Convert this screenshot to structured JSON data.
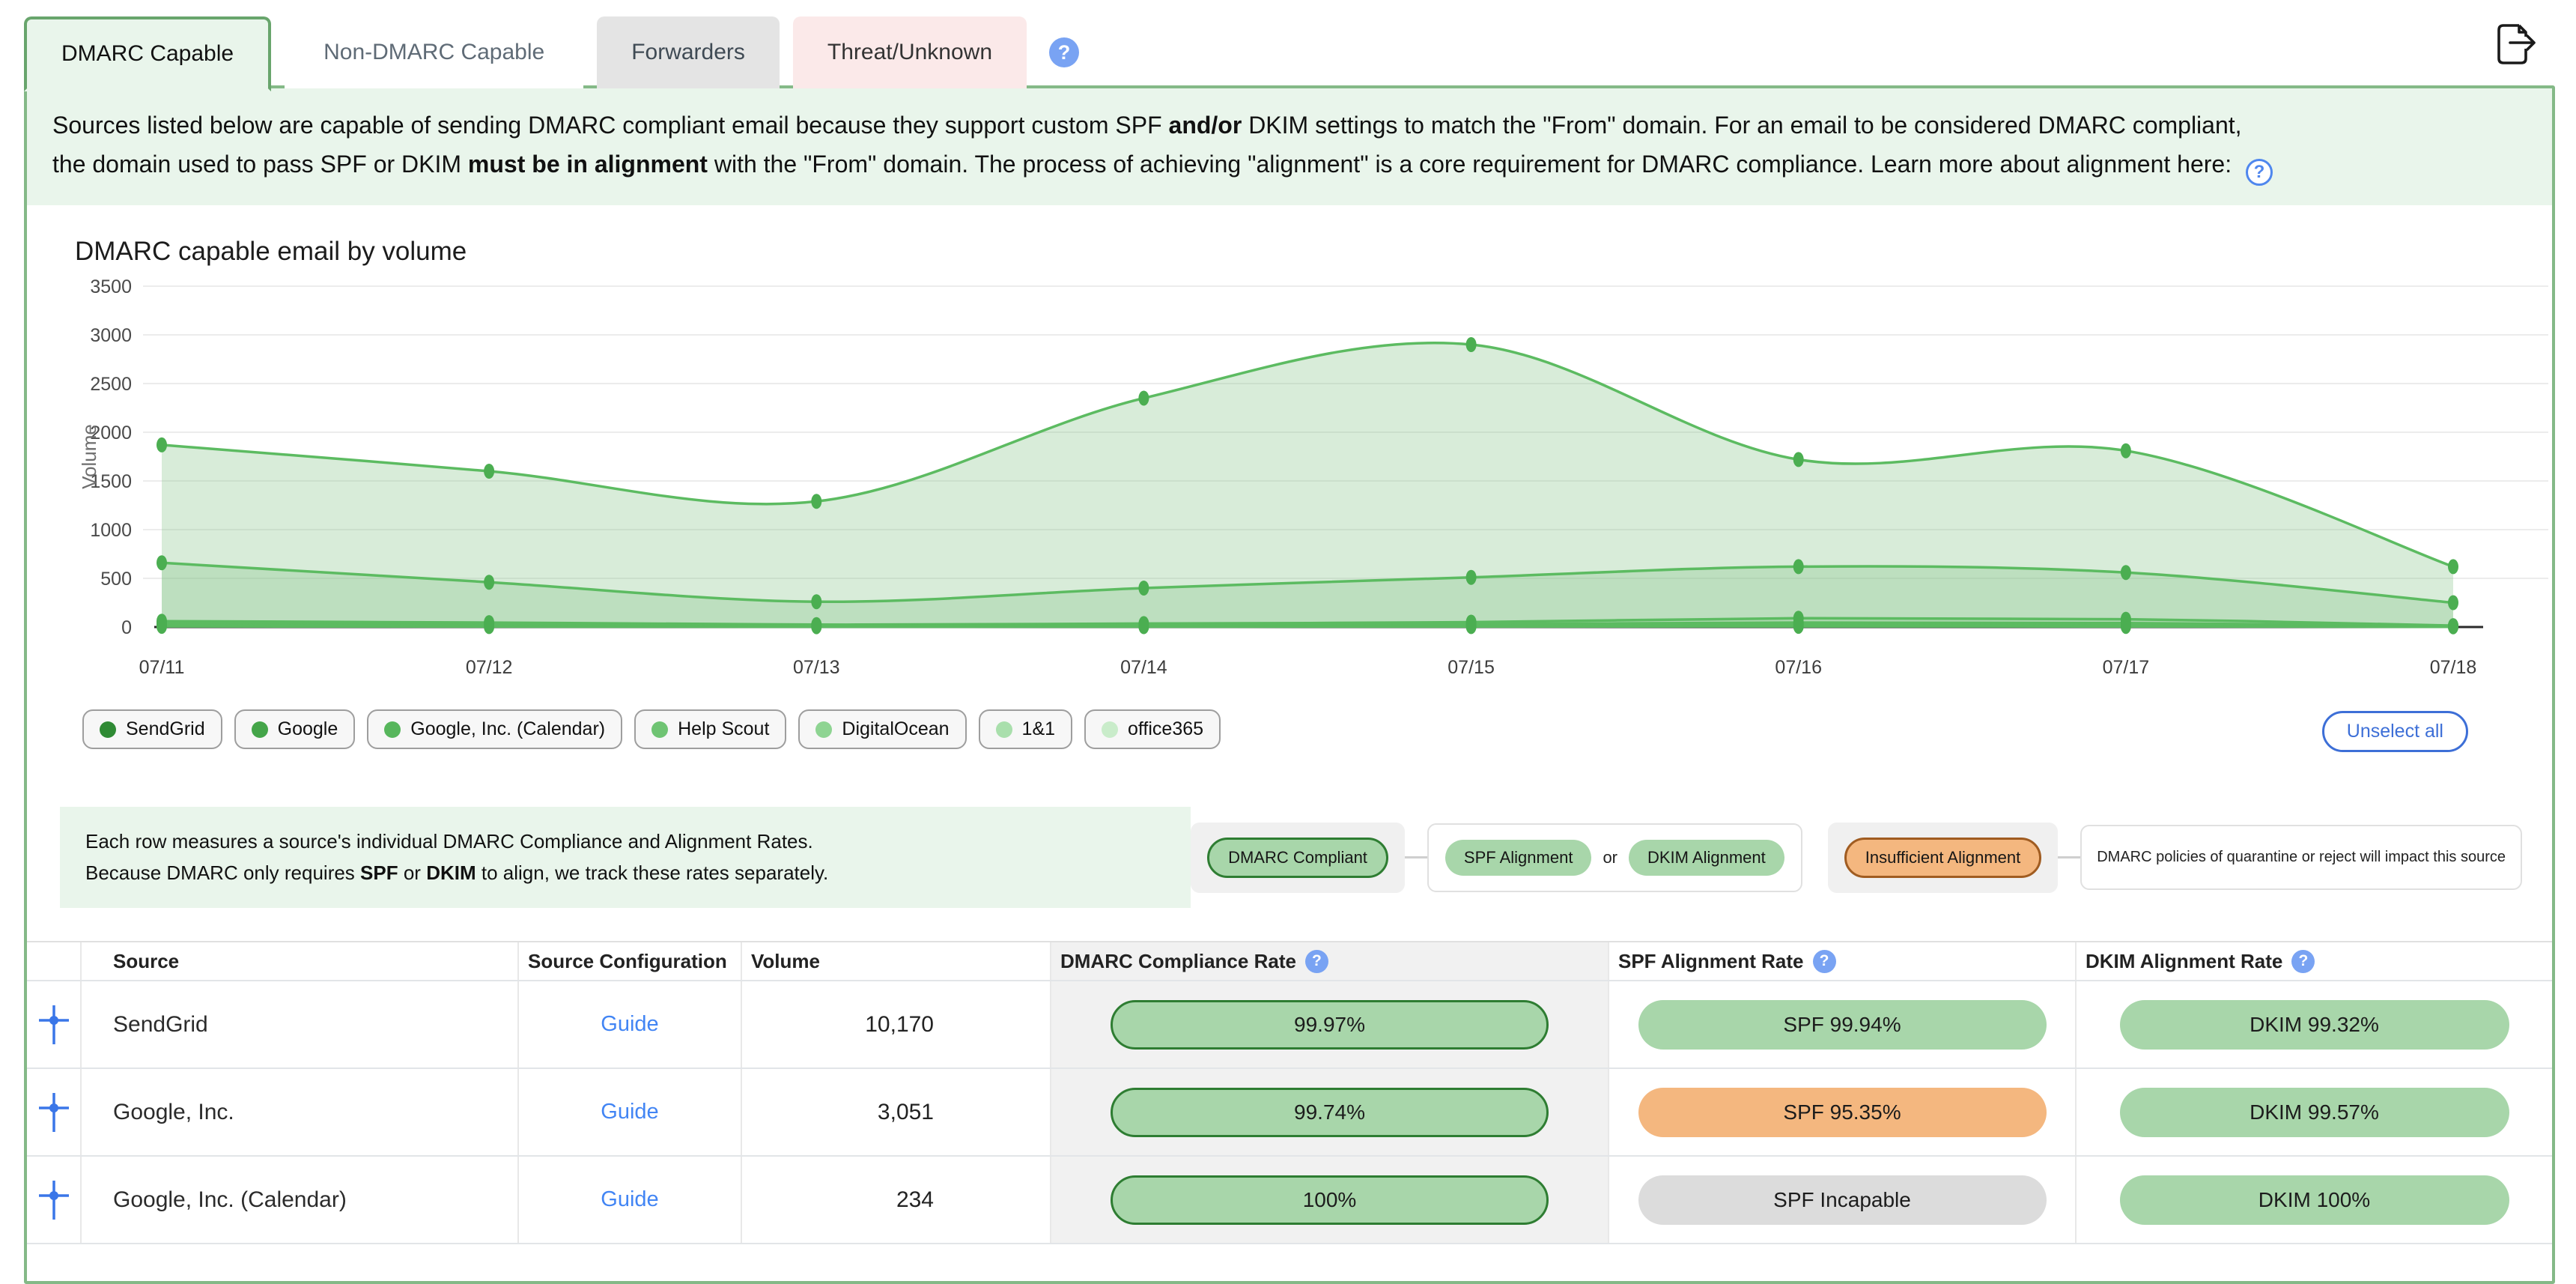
{
  "tabs": [
    {
      "label": "DMARC Capable",
      "state": "active"
    },
    {
      "label": "Non-DMARC Capable",
      "state": "normal"
    },
    {
      "label": "Forwarders",
      "state": "gray"
    },
    {
      "label": "Threat/Unknown",
      "state": "pink"
    }
  ],
  "icons": {
    "question": "?",
    "export": "export-document-arrow-icon",
    "expand": "expand-plus-crosshair-icon"
  },
  "description": {
    "lines": [
      [
        {
          "t": "Sources listed below are capable of sending DMARC compliant email because they support custom SPF ",
          "b": false
        },
        {
          "t": "and/or",
          "b": true
        },
        {
          "t": " DKIM settings to match the \"From\" domain. For an email to be considered DMARC compliant,",
          "b": false
        }
      ],
      [
        {
          "t": "the domain used to pass SPF or DKIM ",
          "b": false
        },
        {
          "t": "must be in alignment",
          "b": true
        },
        {
          "t": " with the \"From\" domain. The process of achieving \"alignment\" is a core requirement for DMARC compliance. Learn more about alignment here: ",
          "b": false
        }
      ]
    ]
  },
  "chart_data": {
    "type": "area",
    "title": "DMARC capable email by volume",
    "xlabel": "",
    "ylabel": "Volume",
    "x": [
      "07/11",
      "07/12",
      "07/13",
      "07/14",
      "07/15",
      "07/16",
      "07/17",
      "07/18"
    ],
    "ylim": [
      0,
      3500
    ],
    "yticks": [
      0,
      500,
      1000,
      1500,
      2000,
      2500,
      3000,
      3500
    ],
    "grid": true,
    "legend_position": "bottom",
    "line_color": "#5cbb61",
    "fill_color": "rgba(134,197,138,0.32)",
    "point_color": "#4bae51",
    "series": [
      {
        "name": "SendGrid",
        "color": "#2f8a34",
        "values": [
          1870,
          1600,
          1290,
          2350,
          2900,
          1720,
          1810,
          620
        ]
      },
      {
        "name": "Google",
        "color": "#44a549",
        "values": [
          660,
          460,
          260,
          400,
          510,
          620,
          560,
          250
        ]
      },
      {
        "name": "Google, Inc. (Calendar)",
        "color": "#57b65c",
        "values": [
          60,
          45,
          25,
          35,
          50,
          90,
          80,
          15
        ]
      },
      {
        "name": "Help Scout",
        "color": "#6fc473",
        "values": [
          40,
          30,
          15,
          22,
          30,
          45,
          40,
          10
        ]
      },
      {
        "name": "DigitalOcean",
        "color": "#8ed492",
        "values": [
          25,
          18,
          10,
          14,
          18,
          25,
          22,
          6
        ]
      },
      {
        "name": "1&1",
        "color": "#a9dfac",
        "values": [
          14,
          10,
          6,
          8,
          10,
          13,
          11,
          4
        ]
      },
      {
        "name": "office365",
        "color": "#c9ecca",
        "values": [
          7,
          5,
          3,
          4,
          5,
          7,
          6,
          2
        ]
      }
    ]
  },
  "buttons": {
    "unselect_all": "Unselect all"
  },
  "table_note": {
    "lines": [
      [
        {
          "t": "Each row measures a source's individual DMARC Compliance and Alignment Rates.",
          "b": false
        }
      ],
      [
        {
          "t": "Because DMARC only requires ",
          "b": false
        },
        {
          "t": "SPF",
          "b": true
        },
        {
          "t": " or ",
          "b": false
        },
        {
          "t": "DKIM",
          "b": true
        },
        {
          "t": " to align, we track these rates separately.",
          "b": false
        }
      ]
    ]
  },
  "rate_legend": {
    "compliant_label": "DMARC Compliant",
    "spf_label": "SPF Alignment",
    "or_label": "or",
    "dkim_label": "DKIM Alignment",
    "insufficient_label": "Insufficient Alignment",
    "note": "DMARC policies of quarantine or reject will impact this source"
  },
  "table": {
    "columns": [
      "",
      "Source",
      "Source Configuration",
      "Volume",
      "DMARC Compliance Rate",
      "SPF Alignment Rate",
      "DKIM Alignment Rate"
    ],
    "rows": [
      {
        "source": "SendGrid",
        "config_label": "Guide",
        "volume": "10,170",
        "compliance": {
          "label": "99.97%",
          "style": "green-bordered"
        },
        "spf": {
          "label": "SPF 99.94%",
          "style": "green"
        },
        "dkim": {
          "label": "DKIM 99.32%",
          "style": "green"
        }
      },
      {
        "source": "Google, Inc.",
        "config_label": "Guide",
        "volume": "3,051",
        "compliance": {
          "label": "99.74%",
          "style": "green-bordered"
        },
        "spf": {
          "label": "SPF 95.35%",
          "style": "orange"
        },
        "dkim": {
          "label": "DKIM 99.57%",
          "style": "green"
        }
      },
      {
        "source": "Google, Inc. (Calendar)",
        "config_label": "Guide",
        "volume": "234",
        "compliance": {
          "label": "100%",
          "style": "green-bordered"
        },
        "spf": {
          "label": "SPF Incapable",
          "style": "gray"
        },
        "dkim": {
          "label": "DKIM 100%",
          "style": "green"
        }
      }
    ]
  },
  "colors": {
    "accent_green": "#68a56c",
    "banner_green": "#e9f5eb",
    "pill_green": "#a8d6aa",
    "pill_green_border": "#2e7d32",
    "pill_orange": "#f4b77f",
    "pill_orange_border": "#a05c21",
    "pill_gray": "#dcdcdc",
    "link_blue": "#4285f4",
    "button_blue": "#3d6fd7",
    "help_blue": "#79a3f3"
  }
}
